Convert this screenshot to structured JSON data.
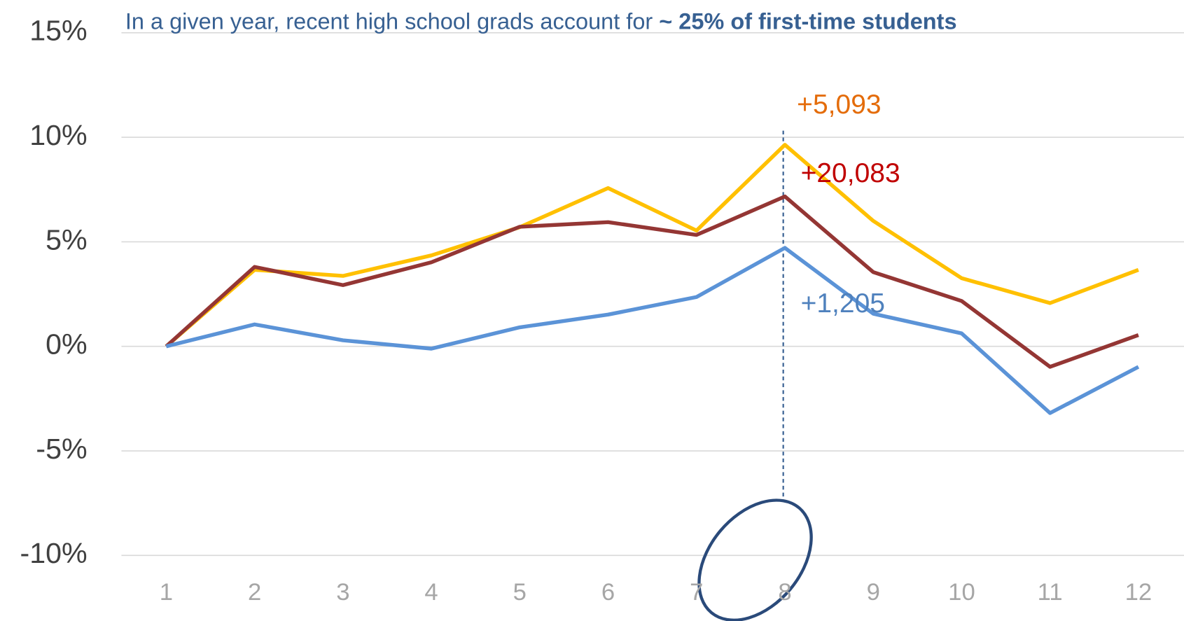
{
  "chart_data": {
    "type": "line",
    "title_parts": [
      "In a given year, recent high school grads account for ",
      "~ 25% of first-time students"
    ],
    "categories": [
      "1",
      "2",
      "3",
      "4",
      "5",
      "6",
      "7",
      "8",
      "9",
      "10",
      "11",
      "12"
    ],
    "series": [
      {
        "color": "#ffc000",
        "values": [
          0,
          3.66,
          3.37,
          4.35,
          5.7,
          7.57,
          5.54,
          9.64,
          6.0,
          3.26,
          2.07,
          3.66
        ]
      },
      {
        "color": "#943634",
        "values": [
          0,
          3.8,
          2.93,
          4.02,
          5.72,
          5.94,
          5.33,
          7.17,
          3.55,
          2.17,
          -0.98,
          0.54
        ]
      },
      {
        "color": "#5b93d7",
        "values": [
          0,
          1.05,
          0.29,
          -0.11,
          0.91,
          1.52,
          2.36,
          4.71,
          1.56,
          0.62,
          -3.19,
          -0.98
        ]
      }
    ],
    "ylim": [
      -11.5,
      15
    ],
    "yticks": [
      {
        "value": -10,
        "label": "-10%"
      },
      {
        "value": -5,
        "label": "-5%"
      },
      {
        "value": 0,
        "label": "0%"
      },
      {
        "value": 5,
        "label": "5%"
      },
      {
        "value": 10,
        "label": "10%"
      },
      {
        "value": 15,
        "label": "15%"
      }
    ],
    "grid": true,
    "annotations": [
      {
        "text": "+5,093",
        "color": "#e46c0a"
      },
      {
        "text": "+20,083",
        "color": "#c00000"
      },
      {
        "text": "+1,205",
        "color": "#4f81bd"
      }
    ]
  }
}
